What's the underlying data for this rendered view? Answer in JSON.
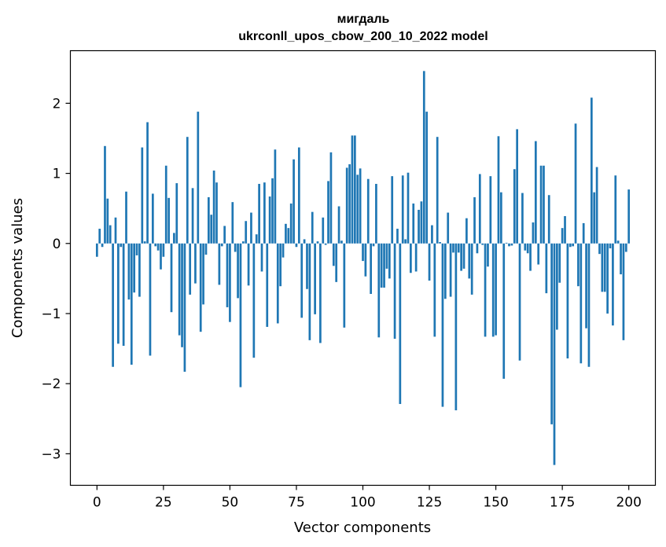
{
  "chart_data": {
    "type": "bar",
    "title_line1": "мигдаль",
    "title_line2": "ukrconll_upos_cbow_200_10_2022 model",
    "xlabel": "Vector components",
    "ylabel": "Components values",
    "xlim": [
      -10,
      210
    ],
    "ylim": [
      -3.45,
      2.75
    ],
    "xticks": [
      0,
      25,
      50,
      75,
      100,
      125,
      150,
      175,
      200
    ],
    "yticks": [
      -3,
      -2,
      -1,
      0,
      1,
      2
    ],
    "bar_color": "#1f77b4",
    "grid": false,
    "values": [
      -0.19,
      0.21,
      -0.05,
      1.39,
      0.64,
      0.26,
      -1.76,
      0.37,
      -1.43,
      -0.05,
      -1.46,
      0.74,
      -0.8,
      -1.73,
      -0.7,
      -0.17,
      -0.76,
      1.37,
      0.03,
      1.73,
      -1.6,
      0.71,
      -0.04,
      -0.1,
      -0.37,
      -0.19,
      1.11,
      0.65,
      -0.98,
      0.15,
      0.86,
      -1.31,
      -1.48,
      -1.83,
      1.52,
      -0.73,
      0.79,
      -0.57,
      1.88,
      -1.26,
      -0.87,
      -0.16,
      0.66,
      0.41,
      1.04,
      0.87,
      -0.59,
      -0.04,
      0.25,
      -0.91,
      -1.12,
      0.59,
      -0.12,
      -0.78,
      -2.05,
      0.03,
      0.32,
      -0.6,
      0.44,
      -1.63,
      0.13,
      0.85,
      -0.4,
      0.87,
      -1.19,
      0.67,
      0.93,
      1.34,
      -1.14,
      -0.61,
      -0.2,
      0.28,
      0.22,
      0.57,
      1.2,
      -0.05,
      1.37,
      -1.06,
      0.06,
      -0.65,
      -1.38,
      0.45,
      -1.01,
      0.03,
      -1.42,
      0.37,
      -0.02,
      0.89,
      1.3,
      -0.32,
      -0.55,
      0.53,
      0.04,
      -1.2,
      1.08,
      1.13,
      1.54,
      1.54,
      0.98,
      1.07,
      -0.25,
      -0.47,
      0.92,
      -0.72,
      -0.04,
      0.85,
      -1.34,
      -0.63,
      -0.63,
      -0.36,
      -0.5,
      0.96,
      -1.36,
      0.21,
      -2.29,
      0.97,
      0.06,
      1.01,
      -0.42,
      0.57,
      -0.4,
      0.48,
      0.6,
      2.46,
      1.88,
      -0.53,
      0.26,
      -1.33,
      1.52,
      0.02,
      -2.33,
      -0.79,
      0.44,
      -0.76,
      -0.13,
      -2.38,
      -0.13,
      -0.39,
      -0.36,
      0.36,
      -0.5,
      -0.73,
      0.66,
      -0.14,
      0.99,
      -0.02,
      -1.33,
      -0.33,
      0.96,
      -1.33,
      -1.31,
      1.53,
      0.73,
      -1.93,
      0.01,
      -0.04,
      -0.03,
      1.06,
      1.63,
      -1.67,
      0.72,
      -0.1,
      -0.14,
      -0.39,
      0.3,
      1.46,
      -0.3,
      1.11,
      1.11,
      -0.71,
      0.69,
      -2.58,
      -3.16,
      -1.23,
      -0.56,
      0.22,
      0.39,
      -1.64,
      -0.05,
      -0.04,
      1.71,
      -0.61,
      -1.71,
      0.29,
      -1.21,
      -1.76,
      2.08,
      0.73,
      1.09,
      -0.15,
      -0.69,
      -0.69,
      -1.0,
      -0.07,
      -1.17,
      0.97,
      0.04,
      -0.44,
      -1.38,
      -0.12,
      0.77
    ]
  }
}
